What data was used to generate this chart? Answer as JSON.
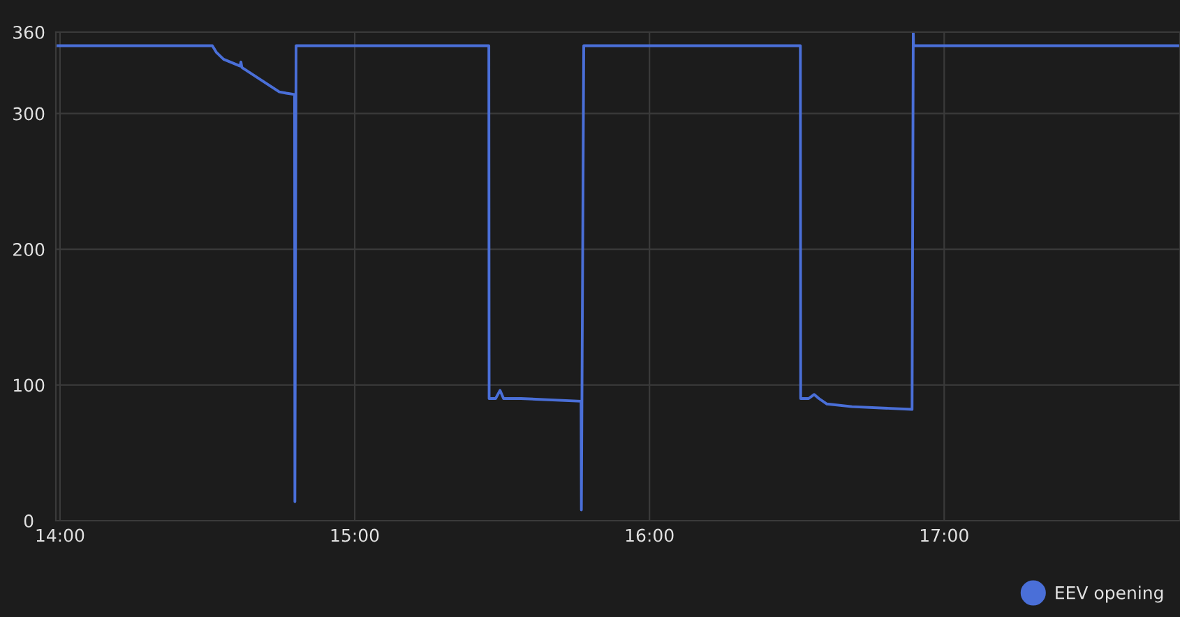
{
  "chart_data": {
    "type": "line",
    "x": [
      13.986,
      14.517,
      14.531,
      14.555,
      14.611,
      14.614,
      14.617,
      14.744,
      14.768,
      14.796,
      14.797,
      14.801,
      15.455,
      15.456,
      15.478,
      15.493,
      15.505,
      15.564,
      15.768,
      15.769,
      15.777,
      16.512,
      16.513,
      16.54,
      16.559,
      16.575,
      16.602,
      16.687,
      16.891,
      16.895,
      16.896,
      17.8
    ],
    "series": [
      {
        "name": "EEV opening",
        "color": "#4a6fd8",
        "values": [
          350,
          350,
          345,
          340,
          335,
          338,
          334,
          316,
          315,
          314,
          14,
          350,
          350,
          90,
          90,
          96,
          90,
          90,
          88,
          8,
          350,
          350,
          90,
          90,
          93,
          90,
          86,
          84,
          82,
          360,
          350,
          350
        ]
      }
    ],
    "xlim": [
      13.986,
      17.8
    ],
    "xticks": [
      {
        "value": 14,
        "label": "14:00"
      },
      {
        "value": 15,
        "label": "15:00"
      },
      {
        "value": 16,
        "label": "16:00"
      },
      {
        "value": 17,
        "label": "17:00"
      }
    ],
    "ylim": [
      0,
      360
    ],
    "yticks": [
      0,
      100,
      200,
      300,
      360
    ],
    "grid": true,
    "legend": "bottom right",
    "marker": "none",
    "line_style": "solid"
  }
}
